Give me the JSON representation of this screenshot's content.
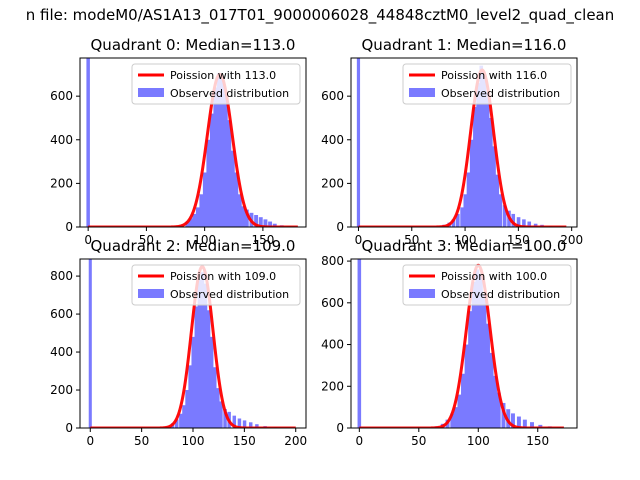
{
  "figure": {
    "suptitle": "n file: modeM0/AS1A13_017T01_9000006028_44848cztM0_level2_quad_clean"
  },
  "colors": {
    "hist": "#7a7aff",
    "poisson": "#ff0000",
    "axes": "#000000",
    "background": "#ffffff"
  },
  "legend": {
    "poisson_prefix": "Poission with",
    "observed_label": "Observed distribution",
    "location": "upper right"
  },
  "chart_data": [
    {
      "type": "bar",
      "title": "Quadrant 0: Median=113.0",
      "median": 113.0,
      "poisson_label": "Poission with 113.0",
      "xlim": [
        -7,
        187
      ],
      "ylim": [
        0,
        775
      ],
      "xticks": [
        0,
        50,
        100,
        150
      ],
      "yticks": [
        0,
        200,
        400,
        600
      ],
      "spike": {
        "x": 0,
        "value": 775
      },
      "hist": [
        {
          "x": 80,
          "value": 10
        },
        {
          "x": 85,
          "value": 25
        },
        {
          "x": 88,
          "value": 40
        },
        {
          "x": 91,
          "value": 60
        },
        {
          "x": 94,
          "value": 90
        },
        {
          "x": 97,
          "value": 150
        },
        {
          "x": 100,
          "value": 250
        },
        {
          "x": 103,
          "value": 400
        },
        {
          "x": 106,
          "value": 520
        },
        {
          "x": 109,
          "value": 640
        },
        {
          "x": 112,
          "value": 705
        },
        {
          "x": 115,
          "value": 690
        },
        {
          "x": 118,
          "value": 610
        },
        {
          "x": 121,
          "value": 490
        },
        {
          "x": 124,
          "value": 350
        },
        {
          "x": 127,
          "value": 250
        },
        {
          "x": 130,
          "value": 150
        },
        {
          "x": 133,
          "value": 95
        },
        {
          "x": 136,
          "value": 80
        },
        {
          "x": 140,
          "value": 65
        },
        {
          "x": 144,
          "value": 55
        },
        {
          "x": 148,
          "value": 45
        },
        {
          "x": 152,
          "value": 35
        },
        {
          "x": 156,
          "value": 25
        },
        {
          "x": 160,
          "value": 15
        },
        {
          "x": 166,
          "value": 8
        },
        {
          "x": 172,
          "value": 4
        }
      ],
      "poisson_range": [
        0,
        180
      ],
      "poisson_peak": 700
    },
    {
      "type": "bar",
      "title": "Quadrant 1: Median=116.0",
      "median": 116.0,
      "poisson_label": "Poission with 116.0",
      "xlim": [
        -7,
        205
      ],
      "ylim": [
        0,
        775
      ],
      "xticks": [
        0,
        50,
        100,
        150,
        200
      ],
      "yticks": [
        0,
        200,
        400,
        600
      ],
      "spike": {
        "x": 0,
        "value": 775
      },
      "hist": [
        {
          "x": 80,
          "value": 10
        },
        {
          "x": 85,
          "value": 20
        },
        {
          "x": 89,
          "value": 35
        },
        {
          "x": 93,
          "value": 60
        },
        {
          "x": 97,
          "value": 90
        },
        {
          "x": 100,
          "value": 150
        },
        {
          "x": 103,
          "value": 250
        },
        {
          "x": 106,
          "value": 400
        },
        {
          "x": 109,
          "value": 550
        },
        {
          "x": 112,
          "value": 660
        },
        {
          "x": 115,
          "value": 740
        },
        {
          "x": 118,
          "value": 700
        },
        {
          "x": 121,
          "value": 620
        },
        {
          "x": 124,
          "value": 500
        },
        {
          "x": 127,
          "value": 370
        },
        {
          "x": 130,
          "value": 240
        },
        {
          "x": 133,
          "value": 150
        },
        {
          "x": 137,
          "value": 100
        },
        {
          "x": 141,
          "value": 75
        },
        {
          "x": 145,
          "value": 60
        },
        {
          "x": 150,
          "value": 45
        },
        {
          "x": 155,
          "value": 35
        },
        {
          "x": 160,
          "value": 25
        },
        {
          "x": 166,
          "value": 15
        },
        {
          "x": 172,
          "value": 10
        },
        {
          "x": 180,
          "value": 5
        },
        {
          "x": 190,
          "value": 3
        }
      ],
      "poisson_range": [
        0,
        195
      ],
      "poisson_peak": 720
    },
    {
      "type": "bar",
      "title": "Quadrant 2: Median=109.0",
      "median": 109.0,
      "poisson_label": "Poission with 109.0",
      "xlim": [
        -10,
        210
      ],
      "ylim": [
        0,
        890
      ],
      "xticks": [
        0,
        50,
        100,
        150,
        200
      ],
      "yticks": [
        0,
        200,
        400,
        600,
        800
      ],
      "spike": {
        "x": 0,
        "value": 890
      },
      "hist": [
        {
          "x": 75,
          "value": 10
        },
        {
          "x": 80,
          "value": 25
        },
        {
          "x": 84,
          "value": 45
        },
        {
          "x": 88,
          "value": 75
        },
        {
          "x": 91,
          "value": 120
        },
        {
          "x": 94,
          "value": 200
        },
        {
          "x": 97,
          "value": 330
        },
        {
          "x": 100,
          "value": 480
        },
        {
          "x": 103,
          "value": 640
        },
        {
          "x": 106,
          "value": 780
        },
        {
          "x": 109,
          "value": 820
        },
        {
          "x": 112,
          "value": 760
        },
        {
          "x": 115,
          "value": 620
        },
        {
          "x": 118,
          "value": 480
        },
        {
          "x": 121,
          "value": 320
        },
        {
          "x": 124,
          "value": 210
        },
        {
          "x": 127,
          "value": 140
        },
        {
          "x": 131,
          "value": 100
        },
        {
          "x": 135,
          "value": 85
        },
        {
          "x": 140,
          "value": 65
        },
        {
          "x": 145,
          "value": 50
        },
        {
          "x": 150,
          "value": 40
        },
        {
          "x": 156,
          "value": 30
        },
        {
          "x": 162,
          "value": 20
        },
        {
          "x": 170,
          "value": 10
        },
        {
          "x": 180,
          "value": 5
        },
        {
          "x": 192,
          "value": 3
        }
      ],
      "poisson_range": [
        0,
        200
      ],
      "poisson_peak": 850
    },
    {
      "type": "bar",
      "title": "Quadrant 3: Median=100.0",
      "median": 100.0,
      "poisson_label": "Poission with 100.0",
      "xlim": [
        -7,
        183
      ],
      "ylim": [
        0,
        810
      ],
      "xticks": [
        0,
        50,
        100,
        150
      ],
      "yticks": [
        0,
        200,
        400,
        600,
        800
      ],
      "spike": {
        "x": 0,
        "value": 810
      },
      "hist": [
        {
          "x": 65,
          "value": 8
        },
        {
          "x": 70,
          "value": 20
        },
        {
          "x": 74,
          "value": 40
        },
        {
          "x": 78,
          "value": 70
        },
        {
          "x": 81,
          "value": 100
        },
        {
          "x": 84,
          "value": 160
        },
        {
          "x": 87,
          "value": 260
        },
        {
          "x": 90,
          "value": 400
        },
        {
          "x": 93,
          "value": 560
        },
        {
          "x": 96,
          "value": 700
        },
        {
          "x": 99,
          "value": 760
        },
        {
          "x": 102,
          "value": 740
        },
        {
          "x": 105,
          "value": 640
        },
        {
          "x": 108,
          "value": 500
        },
        {
          "x": 111,
          "value": 360
        },
        {
          "x": 114,
          "value": 250
        },
        {
          "x": 117,
          "value": 170
        },
        {
          "x": 121,
          "value": 120
        },
        {
          "x": 125,
          "value": 90
        },
        {
          "x": 129,
          "value": 70
        },
        {
          "x": 134,
          "value": 55
        },
        {
          "x": 139,
          "value": 40
        },
        {
          "x": 145,
          "value": 28
        },
        {
          "x": 152,
          "value": 15
        },
        {
          "x": 160,
          "value": 8
        },
        {
          "x": 168,
          "value": 4
        }
      ],
      "poisson_range": [
        0,
        172
      ],
      "poisson_peak": 780
    }
  ]
}
